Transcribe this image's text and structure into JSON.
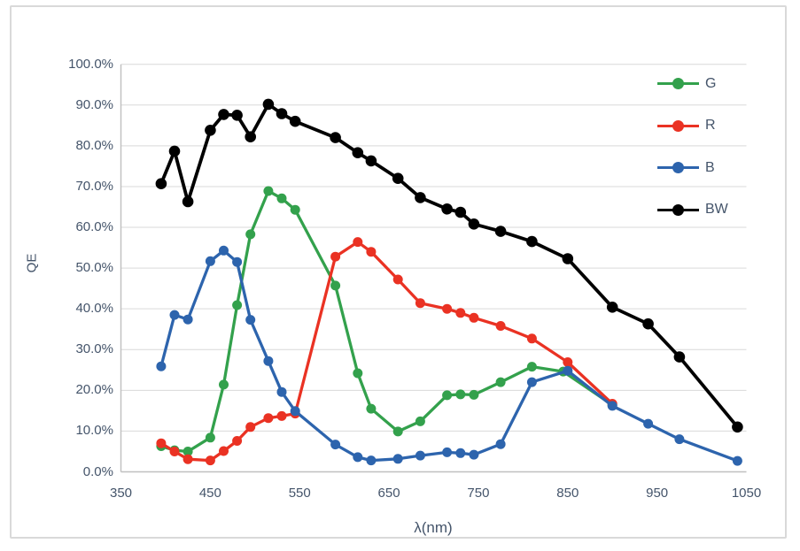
{
  "chart": {
    "y_axis_title": "QE",
    "x_axis_title": "λ(nm)"
  },
  "colors": {
    "grid": "#d9d9d9",
    "axis": "#bfbfbf",
    "frame": "#d9d9d9",
    "tick_text": "#44546a"
  },
  "chart_data": {
    "type": "line",
    "title": "",
    "xlabel": "λ(nm)",
    "ylabel": "QE",
    "xlim": [
      350,
      1050
    ],
    "ylim": [
      0,
      100
    ],
    "x_ticks": [
      350,
      450,
      550,
      650,
      750,
      850,
      950,
      1050
    ],
    "x_tick_labels": [
      "350",
      "450",
      "550",
      "650",
      "750",
      "850",
      "950",
      "1050"
    ],
    "y_ticks": [
      0,
      10,
      20,
      30,
      40,
      50,
      60,
      70,
      80,
      90,
      100
    ],
    "y_tick_labels": [
      "0.0%",
      "10.0%",
      "20.0%",
      "30.0%",
      "40.0%",
      "50.0%",
      "60.0%",
      "70.0%",
      "80.0%",
      "90.0%",
      "100.0%"
    ],
    "y_unit": "percent",
    "grid": "horizontal",
    "legend": {
      "position": "upper-right-inside",
      "entries": [
        "G",
        "R",
        "B",
        "BW"
      ]
    },
    "series": [
      {
        "name": "G",
        "color": "#33a14c",
        "x": [
          395,
          410,
          425,
          450,
          465,
          480,
          495,
          515,
          530,
          545,
          590,
          615,
          630,
          660,
          685,
          715,
          730,
          745,
          775,
          810,
          845,
          900
        ],
        "y": [
          6.3,
          5.3,
          5.0,
          8.4,
          21.4,
          40.9,
          58.3,
          68.9,
          67.1,
          64.3,
          45.7,
          24.2,
          15.5,
          9.9,
          12.4,
          18.8,
          19.0,
          18.9,
          22.0,
          25.8,
          24.6,
          16.4
        ]
      },
      {
        "name": "R",
        "color": "#ea3223",
        "x": [
          395,
          410,
          425,
          450,
          465,
          480,
          495,
          515,
          530,
          545,
          590,
          615,
          630,
          660,
          685,
          715,
          730,
          745,
          775,
          810,
          850,
          900
        ],
        "y": [
          7.0,
          5.0,
          3.1,
          2.8,
          5.1,
          7.6,
          11.0,
          13.2,
          13.7,
          14.3,
          52.8,
          56.4,
          54.0,
          47.2,
          41.4,
          40.0,
          39.0,
          37.8,
          35.8,
          32.7,
          26.9,
          16.7
        ]
      },
      {
        "name": "B",
        "color": "#2d64ad",
        "x": [
          395,
          410,
          425,
          450,
          465,
          480,
          495,
          515,
          530,
          545,
          590,
          615,
          630,
          660,
          685,
          715,
          730,
          745,
          775,
          810,
          850,
          900,
          940,
          975,
          1040
        ],
        "y": [
          25.9,
          38.5,
          37.4,
          51.7,
          54.3,
          51.5,
          37.3,
          27.2,
          19.6,
          14.9,
          6.7,
          3.6,
          2.8,
          3.2,
          4.0,
          4.8,
          4.6,
          4.2,
          6.8,
          22.0,
          24.8,
          16.2,
          11.8,
          8.0,
          2.7
        ]
      },
      {
        "name": "BW",
        "color": "#000000",
        "x": [
          395,
          410,
          425,
          450,
          465,
          480,
          495,
          515,
          530,
          545,
          590,
          615,
          630,
          660,
          685,
          715,
          730,
          745,
          775,
          810,
          850,
          900,
          940,
          975,
          1040
        ],
        "y": [
          70.7,
          78.7,
          66.3,
          83.8,
          87.7,
          87.5,
          82.2,
          90.2,
          87.9,
          86.0,
          82.0,
          78.3,
          76.3,
          72.0,
          67.3,
          64.5,
          63.7,
          60.8,
          59.0,
          56.5,
          52.3,
          40.4,
          36.3,
          28.2,
          11.0
        ]
      }
    ]
  }
}
